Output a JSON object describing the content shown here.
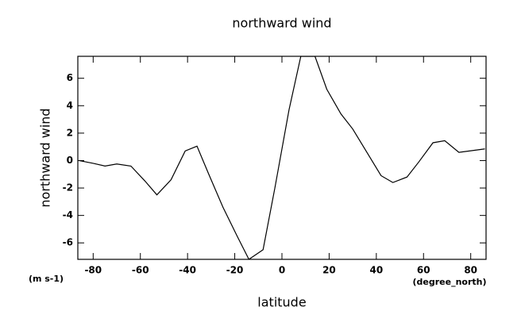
{
  "chart_data": {
    "type": "line",
    "title": "northward wind",
    "y_label": "northward wind",
    "x_label": "latitude",
    "y_units": "(m s-1)",
    "x_units": "(degree_north)",
    "x": [
      -86,
      -80,
      -75,
      -70,
      -64,
      -58,
      -53,
      -47,
      -41,
      -36,
      -31,
      -25,
      -19,
      -14,
      -8,
      -3,
      3,
      8,
      14,
      19,
      25,
      30,
      36,
      42,
      47,
      53,
      58,
      64,
      69,
      75,
      86
    ],
    "series": [
      {
        "name": "northward wind",
        "color": "#000000",
        "values": [
          0,
          -0.2,
          -0.4,
          -0.25,
          -0.4,
          -1.5,
          -2.5,
          -1.4,
          0.7,
          1.05,
          -1.0,
          -3.4,
          -5.5,
          -7.2,
          -6.5,
          -2.0,
          3.7,
          7.6,
          7.6,
          5.2,
          3.4,
          2.3,
          0.6,
          -1.1,
          -1.6,
          -1.2,
          -0.1,
          1.3,
          1.45,
          0.6,
          0.85
        ]
      }
    ],
    "xlim": [
      -86.5,
      86.5
    ],
    "ylim": [
      -7.2,
      7.6
    ],
    "xticks": [
      -80,
      -60,
      -40,
      -20,
      0,
      20,
      40,
      60,
      80
    ],
    "yticks": [
      -6,
      -4,
      -2,
      0,
      2,
      4,
      6
    ]
  }
}
